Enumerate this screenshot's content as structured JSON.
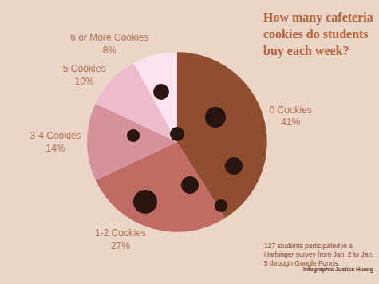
{
  "chart_data": {
    "type": "pie",
    "title": "How many cafeteria cookies do students buy each week?",
    "categories": [
      "0 Cookies",
      "1-2 Cookies",
      "3-4 Cookies",
      "5 Cookies",
      "6 or More Cookies"
    ],
    "values": [
      41,
      27,
      14,
      10,
      8
    ],
    "value_labels": [
      "41%",
      "27%",
      "14%",
      "10%",
      "8%"
    ],
    "colors": [
      "#8e4e2f",
      "#c06b63",
      "#d6919c",
      "#ecbcce",
      "#fbe2ee"
    ],
    "data_labels": true,
    "annotations": [
      "127 students participated in a Harbinger survey from Jan. 2 to Jan. 5 through Google Forms.",
      "Infographic Justice Huang"
    ]
  }
}
